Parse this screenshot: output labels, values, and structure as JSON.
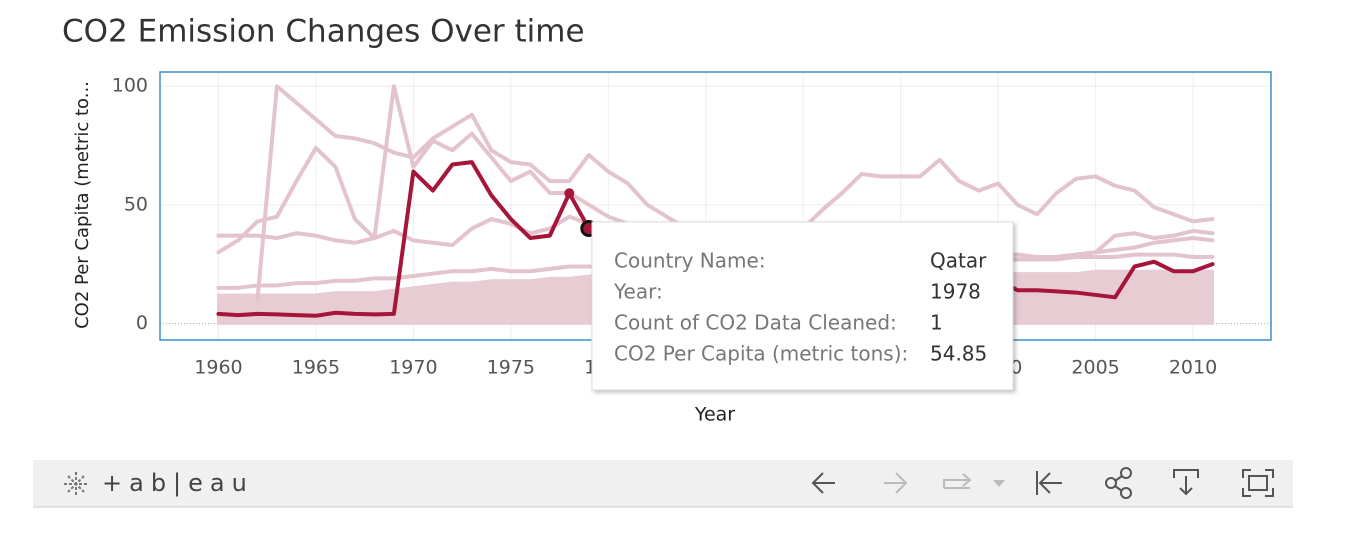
{
  "chart_data": {
    "type": "line",
    "title": "CO2 Emission Changes Over time",
    "x_label": "Year",
    "y_label": "CO2 Per Capita (metric to...",
    "x": [
      1960,
      1961,
      1962,
      1963,
      1964,
      1965,
      1966,
      1967,
      1968,
      1969,
      1970,
      1971,
      1972,
      1973,
      1974,
      1975,
      1976,
      1977,
      1978,
      1979,
      1980,
      1981,
      1982,
      1983,
      1984,
      1985,
      1986,
      1987,
      1988,
      1989,
      1990,
      1991,
      1992,
      1993,
      1994,
      1995,
      1996,
      1997,
      1998,
      1999,
      2000,
      2001,
      2002,
      2003,
      2004,
      2005,
      2006,
      2007,
      2008,
      2009,
      2010,
      2011
    ],
    "xlim": [
      1957,
      2014
    ],
    "xticks": [
      1960,
      1965,
      1970,
      1975,
      1980,
      1985,
      1990,
      1995,
      2000,
      2005,
      2010
    ],
    "ylim": [
      -7,
      106
    ],
    "yticks": [
      0,
      50,
      100
    ],
    "grid": true,
    "series": [
      {
        "color": "#e8ccd3",
        "fill": true,
        "values": [
          12,
          12,
          12,
          12,
          12,
          12,
          13,
          13,
          13,
          14,
          15,
          16,
          17,
          17,
          18,
          18,
          18,
          19,
          19,
          20,
          20,
          20,
          20,
          20,
          20,
          20,
          20,
          20,
          20,
          20,
          21,
          21,
          21,
          21,
          21,
          21,
          21,
          21,
          21,
          21,
          21,
          21,
          21,
          21,
          21,
          22,
          22,
          22,
          22,
          22,
          22,
          22
        ]
      },
      {
        "color": "#e3c4cc",
        "values": [
          null,
          null,
          10,
          100,
          93,
          86,
          79,
          78,
          76,
          72,
          70,
          78,
          83,
          88,
          73,
          68,
          67,
          60,
          60,
          71,
          64,
          59,
          50,
          45,
          40,
          38,
          36,
          34,
          35,
          38,
          40,
          48,
          55,
          63,
          62,
          62,
          62,
          69,
          60,
          56,
          59,
          50,
          46,
          55,
          61,
          62,
          58,
          56,
          49,
          46,
          43,
          44
        ]
      },
      {
        "color": "#e3c4cc",
        "values": [
          30,
          35,
          43,
          45,
          60,
          74,
          66,
          44,
          36,
          100,
          66,
          77,
          73,
          80,
          70,
          60,
          64,
          55,
          55,
          50,
          45,
          42,
          40,
          38,
          36,
          35,
          34,
          33,
          32,
          32,
          31,
          31,
          30,
          30,
          30,
          29,
          29,
          29,
          28,
          28,
          28,
          27,
          27,
          28,
          29,
          30,
          31,
          32,
          34,
          35,
          36,
          35
        ]
      },
      {
        "color": "#e3c4cc",
        "values": [
          37,
          37,
          37,
          36,
          38,
          37,
          35,
          34,
          36,
          39,
          35,
          34,
          33,
          40,
          44,
          42,
          38,
          40,
          45,
          42,
          40,
          38,
          37,
          36,
          35,
          34,
          33,
          32,
          32,
          31,
          30,
          30,
          30,
          30,
          30,
          30,
          30,
          30,
          30,
          30,
          29,
          29,
          28,
          28,
          29,
          30,
          37,
          38,
          36,
          37,
          39,
          38
        ]
      },
      {
        "color": "#e3c4cc",
        "values": [
          15,
          15,
          16,
          16,
          17,
          17,
          18,
          18,
          19,
          19,
          20,
          21,
          22,
          22,
          23,
          22,
          22,
          23,
          24,
          24,
          24,
          24,
          24,
          24,
          24,
          24,
          24,
          24,
          24,
          24,
          24,
          25,
          25,
          25,
          25,
          25,
          26,
          26,
          26,
          26,
          26,
          27,
          27,
          27,
          28,
          28,
          28,
          29,
          29,
          29,
          28,
          28
        ]
      },
      {
        "name": "Qatar",
        "color": "#a5163a",
        "highlight": true,
        "values": [
          4,
          3.5,
          4,
          3.8,
          3.5,
          3.2,
          4.5,
          4,
          3.8,
          4,
          64,
          56,
          67,
          68,
          54,
          44,
          36,
          37,
          54.85,
          40,
          38,
          35,
          33,
          30,
          28,
          27,
          26,
          25,
          25,
          24,
          24,
          23,
          22,
          22,
          21,
          21,
          20,
          20,
          19,
          19,
          18,
          14,
          14,
          13.5,
          13,
          12,
          11,
          24,
          26,
          22,
          22,
          25
        ]
      }
    ],
    "tooltip": {
      "rows": [
        [
          "Country Name:",
          "Qatar"
        ],
        [
          "Year:",
          1978
        ],
        [
          "Count of CO2 Data Cleaned:",
          1
        ],
        [
          "CO2 Per Capita (metric tons):",
          54.85
        ]
      ]
    }
  },
  "toolbar": {
    "logo": "+ab|eau"
  }
}
